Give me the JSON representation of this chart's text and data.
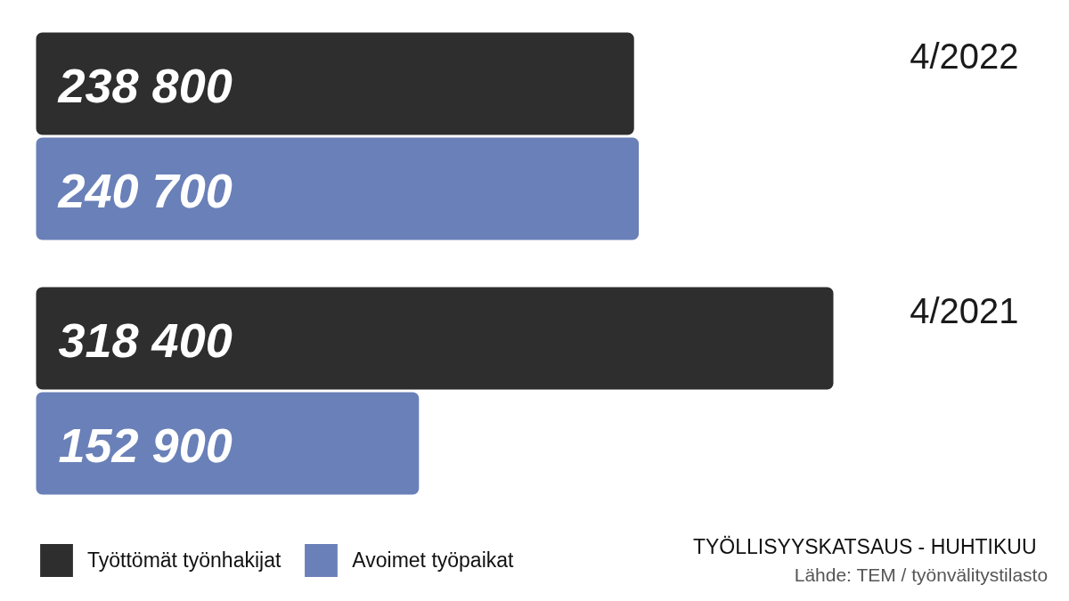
{
  "chart_data": {
    "type": "bar",
    "orientation": "horizontal",
    "title": "TYÖLLISYYSKATSAUS - HUHTIKUU",
    "annotations": [
      "Lähde: TEM / työnvälitystilasto"
    ],
    "categories": [
      "4/2022",
      "4/2021"
    ],
    "series": [
      {
        "name": "Työttömät työnhakijat",
        "color": "#2e2e2e",
        "values": [
          238800,
          318400
        ],
        "value_labels": [
          "238 800",
          "318 400"
        ]
      },
      {
        "name": "Avoimet työpaikat",
        "color": "#6a80b8",
        "values": [
          240700,
          152900
        ],
        "value_labels": [
          "240 700",
          "152 900"
        ]
      }
    ],
    "legend": "bottom left",
    "tick_labels": "y"
  }
}
